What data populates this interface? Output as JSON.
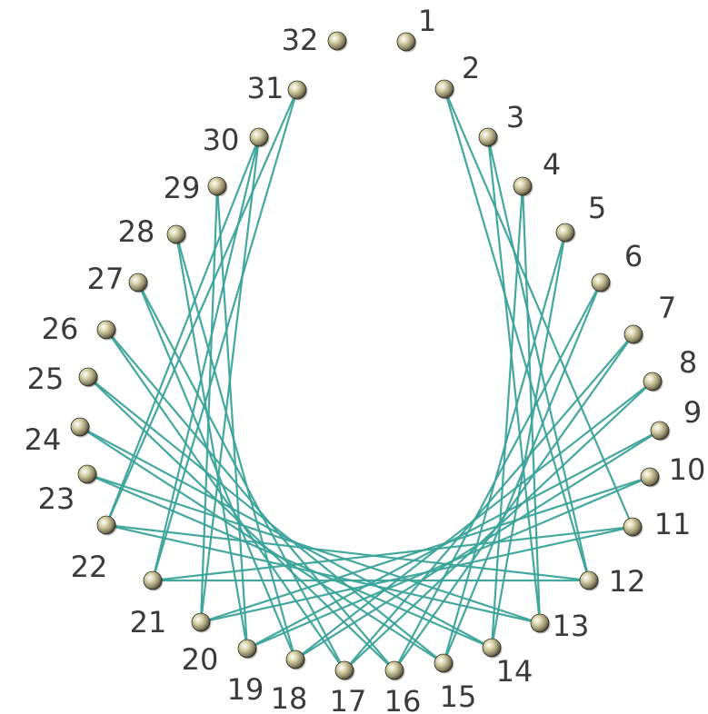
{
  "diagram": {
    "type": "string-art",
    "thread_color": "#3aa39a",
    "nail_color": "#b9b28c",
    "label_color": "#3b3b3b",
    "nails": [
      {
        "label": "1"
      },
      {
        "label": "2"
      },
      {
        "label": "3"
      },
      {
        "label": "4"
      },
      {
        "label": "5"
      },
      {
        "label": "6"
      },
      {
        "label": "7"
      },
      {
        "label": "8"
      },
      {
        "label": "9"
      },
      {
        "label": "10"
      },
      {
        "label": "11"
      },
      {
        "label": "12"
      },
      {
        "label": "13"
      },
      {
        "label": "14"
      },
      {
        "label": "15"
      },
      {
        "label": "16"
      },
      {
        "label": "17"
      },
      {
        "label": "18"
      },
      {
        "label": "19"
      },
      {
        "label": "20"
      },
      {
        "label": "21"
      },
      {
        "label": "22"
      },
      {
        "label": "23"
      },
      {
        "label": "24"
      },
      {
        "label": "25"
      },
      {
        "label": "26"
      },
      {
        "label": "27"
      },
      {
        "label": "28"
      },
      {
        "label": "29"
      },
      {
        "label": "30"
      },
      {
        "label": "31"
      },
      {
        "label": "32"
      }
    ],
    "threads": [
      [
        "2",
        "11"
      ],
      [
        "2",
        "12"
      ],
      [
        "3",
        "12"
      ],
      [
        "3",
        "13"
      ],
      [
        "4",
        "13"
      ],
      [
        "4",
        "14"
      ],
      [
        "5",
        "14"
      ],
      [
        "5",
        "15"
      ],
      [
        "6",
        "15"
      ],
      [
        "6",
        "16"
      ],
      [
        "7",
        "16"
      ],
      [
        "7",
        "17"
      ],
      [
        "8",
        "17"
      ],
      [
        "8",
        "18"
      ],
      [
        "9",
        "18"
      ],
      [
        "9",
        "19"
      ],
      [
        "10",
        "19"
      ],
      [
        "10",
        "20"
      ],
      [
        "11",
        "20"
      ],
      [
        "11",
        "21"
      ],
      [
        "12",
        "21"
      ],
      [
        "12",
        "22"
      ],
      [
        "13",
        "22"
      ],
      [
        "13",
        "23"
      ],
      [
        "14",
        "23"
      ],
      [
        "14",
        "24"
      ],
      [
        "15",
        "24"
      ],
      [
        "15",
        "25"
      ],
      [
        "16",
        "25"
      ],
      [
        "16",
        "26"
      ],
      [
        "17",
        "26"
      ],
      [
        "17",
        "27"
      ],
      [
        "18",
        "27"
      ],
      [
        "18",
        "28"
      ],
      [
        "19",
        "28"
      ],
      [
        "19",
        "29"
      ],
      [
        "20",
        "29"
      ],
      [
        "20",
        "30"
      ],
      [
        "21",
        "30"
      ],
      [
        "21",
        "31"
      ],
      [
        "22",
        "31"
      ],
      [
        "22",
        "30"
      ]
    ]
  }
}
